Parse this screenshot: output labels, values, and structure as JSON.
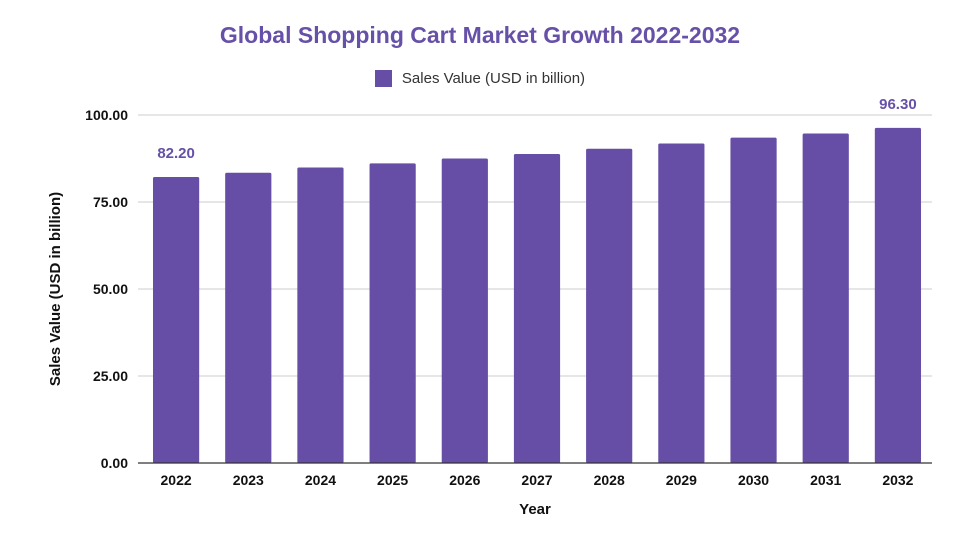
{
  "chart_data": {
    "type": "bar",
    "title": "Global Shopping Cart Market Growth 2022-2032",
    "xlabel": "Year",
    "ylabel": "Sales Value (USD in billion)",
    "ylim": [
      0,
      100
    ],
    "yticks": [
      "0.00",
      "25.00",
      "50.00",
      "75.00",
      "100.00"
    ],
    "ytick_values": [
      0,
      25,
      50,
      75,
      100
    ],
    "grid": true,
    "legend_position": "top-center",
    "categories": [
      "2022",
      "2023",
      "2024",
      "2025",
      "2026",
      "2027",
      "2028",
      "2029",
      "2030",
      "2031",
      "2032"
    ],
    "series": [
      {
        "name": "Sales Value (USD in billion)",
        "color": "#664ea6",
        "values": [
          82.2,
          83.4,
          84.9,
          86.1,
          87.5,
          88.8,
          90.3,
          91.8,
          93.5,
          94.7,
          96.3
        ]
      }
    ],
    "data_labels": [
      {
        "category": "2022",
        "text": "82.20"
      },
      {
        "category": "2032",
        "text": "96.30"
      }
    ],
    "colors": {
      "bar": "#664ea6",
      "title": "#6650a8",
      "data_label": "#6650a8",
      "grid": "#cccccc",
      "axis": "#333333"
    }
  }
}
